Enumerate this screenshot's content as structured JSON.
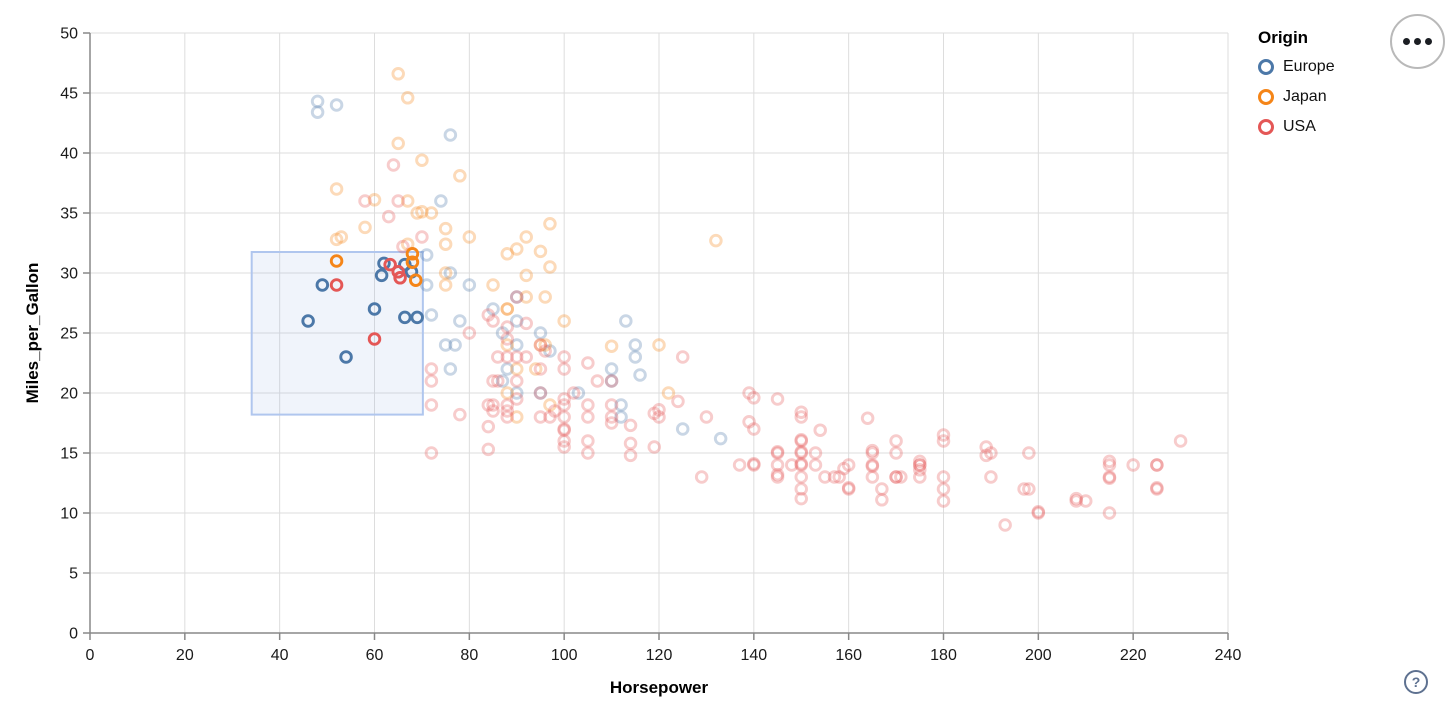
{
  "controls": {
    "help_label": "?",
    "options_icon": "ellipsis-icon"
  },
  "chart_data": {
    "type": "scatter",
    "title": "",
    "xlabel": "Horsepower",
    "ylabel": "Miles_per_Gallon",
    "xlim": [
      0,
      240
    ],
    "ylim": [
      0,
      50
    ],
    "x_ticks": [
      0,
      20,
      40,
      60,
      80,
      100,
      120,
      140,
      160,
      180,
      200,
      220,
      240
    ],
    "y_ticks": [
      0,
      5,
      10,
      15,
      20,
      25,
      30,
      35,
      40,
      45,
      50
    ],
    "grid": true,
    "legend": {
      "title": "Origin",
      "position": "top-right",
      "entries": [
        {
          "label": "Europe",
          "color": "#4c78a8"
        },
        {
          "label": "Japan",
          "color": "#f58518"
        },
        {
          "label": "USA",
          "color": "#e45756"
        }
      ]
    },
    "origin_colors": {
      "E": "#4c78a8",
      "J": "#f58518",
      "U": "#e45756"
    },
    "point_style": {
      "radius": 5.3,
      "stroke_width": 2.9,
      "unselected_opacity": 0.3
    },
    "brush_selection": {
      "hp_range": [
        34.1,
        70.2
      ],
      "mpg_range": [
        18.2,
        31.75
      ],
      "fill": "rgba(150,180,230,0.14)",
      "stroke": "#b0c6ee"
    },
    "points_format": [
      "horsepower",
      "miles_per_gallon",
      "origin(E|J|U)",
      "selected(1)"
    ],
    "points": [
      [
        46,
        26,
        "E",
        1
      ],
      [
        49,
        29,
        "E",
        1
      ],
      [
        54,
        23,
        "E",
        1
      ],
      [
        60,
        27,
        "E",
        1
      ],
      [
        61.5,
        29.8,
        "E",
        1
      ],
      [
        62,
        30.8,
        "E",
        1
      ],
      [
        66.4,
        30.7,
        "E",
        1
      ],
      [
        67.8,
        30.1,
        "E",
        1
      ],
      [
        66.4,
        26.3,
        "E",
        1
      ],
      [
        69,
        26.3,
        "E",
        1
      ],
      [
        52,
        31,
        "J",
        1
      ],
      [
        68,
        31.6,
        "J",
        1
      ],
      [
        68,
        30.9,
        "J",
        1
      ],
      [
        68.7,
        29.4,
        "J",
        1
      ],
      [
        52,
        29,
        "U",
        1
      ],
      [
        60,
        24.5,
        "U",
        1
      ],
      [
        63.3,
        30.7,
        "U",
        1
      ],
      [
        65,
        30.1,
        "U",
        1
      ],
      [
        65.4,
        29.6,
        "U",
        1
      ],
      [
        87,
        25,
        "E"
      ],
      [
        90,
        24,
        "E"
      ],
      [
        95,
        25,
        "E"
      ],
      [
        113,
        26,
        "E"
      ],
      [
        90,
        28,
        "E"
      ],
      [
        76,
        30,
        "E"
      ],
      [
        76,
        22,
        "E"
      ],
      [
        87,
        21,
        "E"
      ],
      [
        90,
        20,
        "E"
      ],
      [
        112,
        18,
        "E"
      ],
      [
        75,
        24,
        "E"
      ],
      [
        95,
        20,
        "E"
      ],
      [
        112,
        19,
        "E"
      ],
      [
        115,
        24,
        "E"
      ],
      [
        110,
        21,
        "E"
      ],
      [
        103,
        20,
        "E"
      ],
      [
        115,
        23,
        "E"
      ],
      [
        78,
        26,
        "E"
      ],
      [
        71,
        29,
        "E"
      ],
      [
        97,
        23.5,
        "E"
      ],
      [
        90,
        26,
        "E"
      ],
      [
        77,
        24,
        "E"
      ],
      [
        125,
        17,
        "E"
      ],
      [
        133,
        16.2,
        "E"
      ],
      [
        71,
        31.5,
        "E"
      ],
      [
        48,
        43.4,
        "E"
      ],
      [
        48,
        44.3,
        "E"
      ],
      [
        52,
        44,
        "E"
      ],
      [
        74,
        36,
        "E"
      ],
      [
        76,
        41.5,
        "E"
      ],
      [
        88,
        22,
        "E"
      ],
      [
        116,
        21.5,
        "E"
      ],
      [
        85,
        27,
        "E"
      ],
      [
        80,
        29,
        "E"
      ],
      [
        110,
        22,
        "E"
      ],
      [
        72,
        26.5,
        "E"
      ],
      [
        95,
        24,
        "J"
      ],
      [
        88,
        27,
        "J"
      ],
      [
        88,
        27,
        "J"
      ],
      [
        69,
        35,
        "J"
      ],
      [
        92,
        28,
        "J"
      ],
      [
        97,
        19,
        "J"
      ],
      [
        88,
        20,
        "J"
      ],
      [
        94,
        22,
        "J"
      ],
      [
        90,
        18,
        "J"
      ],
      [
        122,
        20,
        "J"
      ],
      [
        96,
        24,
        "J"
      ],
      [
        75,
        29,
        "J"
      ],
      [
        53,
        33,
        "J"
      ],
      [
        60,
        36.1,
        "J"
      ],
      [
        58,
        33.8,
        "J"
      ],
      [
        70,
        39.4,
        "J"
      ],
      [
        67,
        44.6,
        "J"
      ],
      [
        65,
        46.6,
        "J"
      ],
      [
        65,
        40.8,
        "J"
      ],
      [
        52,
        32.8,
        "J"
      ],
      [
        52,
        37,
        "J"
      ],
      [
        75,
        30,
        "J"
      ],
      [
        92,
        29.8,
        "J"
      ],
      [
        88,
        31.6,
        "J"
      ],
      [
        75,
        32.4,
        "J"
      ],
      [
        67,
        32.4,
        "J"
      ],
      [
        67,
        36,
        "J"
      ],
      [
        78,
        38.1,
        "J"
      ],
      [
        70,
        35.1,
        "J"
      ],
      [
        75,
        33.7,
        "J"
      ],
      [
        132,
        32.7,
        "J"
      ],
      [
        120,
        24,
        "J"
      ],
      [
        110,
        23.9,
        "J"
      ],
      [
        97,
        34.1,
        "J"
      ],
      [
        72,
        35,
        "J"
      ],
      [
        95,
        31.8,
        "J"
      ],
      [
        85,
        29,
        "J"
      ],
      [
        92,
        33,
        "J"
      ],
      [
        96,
        28,
        "J"
      ],
      [
        100,
        26,
        "J"
      ],
      [
        90,
        32,
        "J"
      ],
      [
        80,
        33,
        "J"
      ],
      [
        97,
        30.5,
        "J"
      ],
      [
        88,
        24,
        "J"
      ],
      [
        90,
        22,
        "J"
      ],
      [
        130,
        18,
        "U"
      ],
      [
        165,
        15,
        "U"
      ],
      [
        150,
        18,
        "U"
      ],
      [
        150,
        16,
        "U"
      ],
      [
        140,
        17,
        "U"
      ],
      [
        198,
        15,
        "U"
      ],
      [
        220,
        14,
        "U"
      ],
      [
        215,
        14,
        "U"
      ],
      [
        225,
        14,
        "U"
      ],
      [
        190,
        15,
        "U"
      ],
      [
        170,
        15,
        "U"
      ],
      [
        160,
        14,
        "U"
      ],
      [
        150,
        15,
        "U"
      ],
      [
        225,
        14,
        "U"
      ],
      [
        215,
        10,
        "U"
      ],
      [
        200,
        10,
        "U"
      ],
      [
        210,
        11,
        "U"
      ],
      [
        193,
        9,
        "U"
      ],
      [
        165,
        14,
        "U"
      ],
      [
        175,
        14,
        "U"
      ],
      [
        153,
        14,
        "U"
      ],
      [
        150,
        12,
        "U"
      ],
      [
        180,
        13,
        "U"
      ],
      [
        170,
        13,
        "U"
      ],
      [
        175,
        14,
        "U"
      ],
      [
        165,
        13,
        "U"
      ],
      [
        153,
        15,
        "U"
      ],
      [
        150,
        14,
        "U"
      ],
      [
        208,
        11,
        "U"
      ],
      [
        155,
        13,
        "U"
      ],
      [
        160,
        12,
        "U"
      ],
      [
        190,
        13,
        "U"
      ],
      [
        175,
        13,
        "U"
      ],
      [
        145,
        13,
        "U"
      ],
      [
        137,
        14,
        "U"
      ],
      [
        198,
        12,
        "U"
      ],
      [
        150,
        13,
        "U"
      ],
      [
        158,
        13,
        "U"
      ],
      [
        215,
        13,
        "U"
      ],
      [
        225,
        12,
        "U"
      ],
      [
        167,
        12,
        "U"
      ],
      [
        170,
        13,
        "U"
      ],
      [
        180,
        12,
        "U"
      ],
      [
        145,
        15,
        "U"
      ],
      [
        230,
        16,
        "U"
      ],
      [
        180,
        11,
        "U"
      ],
      [
        145,
        14,
        "U"
      ],
      [
        148,
        14,
        "U"
      ],
      [
        140,
        14,
        "U"
      ],
      [
        129,
        13,
        "U"
      ],
      [
        139,
        20,
        "U"
      ],
      [
        140,
        19.6,
        "U"
      ],
      [
        145,
        19.5,
        "U"
      ],
      [
        125,
        23,
        "U"
      ],
      [
        139,
        17.6,
        "U"
      ],
      [
        140,
        14.1,
        "U"
      ],
      [
        145,
        15.1,
        "U"
      ],
      [
        145,
        13.2,
        "U"
      ],
      [
        150,
        18.4,
        "U"
      ],
      [
        150,
        16.1,
        "U"
      ],
      [
        150,
        15.1,
        "U"
      ],
      [
        150,
        14.1,
        "U"
      ],
      [
        150,
        11.2,
        "U"
      ],
      [
        154,
        16.9,
        "U"
      ],
      [
        157,
        13,
        "U"
      ],
      [
        159,
        13.7,
        "U"
      ],
      [
        160,
        12.1,
        "U"
      ],
      [
        164,
        17.9,
        "U"
      ],
      [
        165,
        15.2,
        "U"
      ],
      [
        165,
        13.9,
        "U"
      ],
      [
        167,
        11.1,
        "U"
      ],
      [
        170,
        16,
        "U"
      ],
      [
        175,
        14.3,
        "U"
      ],
      [
        175,
        13.6,
        "U"
      ],
      [
        171,
        13,
        "U"
      ],
      [
        180,
        16.5,
        "U"
      ],
      [
        180,
        16,
        "U"
      ],
      [
        189,
        15.5,
        "U"
      ],
      [
        189,
        14.8,
        "U"
      ],
      [
        197,
        12,
        "U"
      ],
      [
        200,
        10.1,
        "U"
      ],
      [
        208,
        11.2,
        "U"
      ],
      [
        215,
        14.3,
        "U"
      ],
      [
        215,
        12.9,
        "U"
      ],
      [
        225,
        12.1,
        "U"
      ],
      [
        95,
        22,
        "U"
      ],
      [
        97,
        18,
        "U"
      ],
      [
        85,
        21,
        "U"
      ],
      [
        90,
        21,
        "U"
      ],
      [
        100,
        19,
        "U"
      ],
      [
        105,
        16,
        "U"
      ],
      [
        100,
        17,
        "U"
      ],
      [
        88,
        19,
        "U"
      ],
      [
        100,
        18,
        "U"
      ],
      [
        110,
        18,
        "U"
      ],
      [
        72,
        22,
        "U"
      ],
      [
        100,
        19.5,
        "U"
      ],
      [
        88,
        18,
        "U"
      ],
      [
        86,
        23,
        "U"
      ],
      [
        90,
        28,
        "U"
      ],
      [
        95,
        24,
        "U"
      ],
      [
        80,
        25,
        "U"
      ],
      [
        86,
        21,
        "U"
      ],
      [
        105,
        18,
        "U"
      ],
      [
        100,
        16,
        "U"
      ],
      [
        88,
        18.5,
        "U"
      ],
      [
        100,
        23,
        "U"
      ],
      [
        72,
        21,
        "U"
      ],
      [
        85,
        19,
        "U"
      ],
      [
        107,
        21,
        "U"
      ],
      [
        95,
        20,
        "U"
      ],
      [
        110,
        21,
        "U"
      ],
      [
        105,
        19,
        "U"
      ],
      [
        110,
        19,
        "U"
      ],
      [
        95,
        18,
        "U"
      ],
      [
        92,
        23,
        "U"
      ],
      [
        100,
        22,
        "U"
      ],
      [
        72,
        19,
        "U"
      ],
      [
        102,
        20,
        "U"
      ],
      [
        98,
        18.5,
        "U"
      ],
      [
        85,
        18.5,
        "U"
      ],
      [
        90,
        19.5,
        "U"
      ],
      [
        110,
        17.5,
        "U"
      ],
      [
        120,
        18,
        "U"
      ],
      [
        119,
        18.3,
        "U"
      ],
      [
        119,
        15.5,
        "U"
      ],
      [
        124,
        19.3,
        "U"
      ],
      [
        114,
        17.3,
        "U"
      ],
      [
        114,
        15.8,
        "U"
      ],
      [
        114,
        14.8,
        "U"
      ],
      [
        100,
        16.9,
        "U"
      ],
      [
        84,
        17.2,
        "U"
      ],
      [
        84,
        15.3,
        "U"
      ],
      [
        84,
        19,
        "U"
      ],
      [
        72,
        15,
        "U"
      ],
      [
        78,
        18.2,
        "U"
      ],
      [
        105,
        22.5,
        "U"
      ],
      [
        88,
        24.5,
        "U"
      ],
      [
        85,
        26,
        "U"
      ],
      [
        84,
        26.5,
        "U"
      ],
      [
        88,
        25.5,
        "U"
      ],
      [
        92,
        25.8,
        "U"
      ],
      [
        96,
        23.5,
        "U"
      ],
      [
        90,
        23,
        "U"
      ],
      [
        88,
        23,
        "U"
      ],
      [
        100,
        15.5,
        "U"
      ],
      [
        105,
        15,
        "U"
      ],
      [
        120,
        18.6,
        "U"
      ],
      [
        64,
        39,
        "U"
      ],
      [
        58,
        36,
        "U"
      ],
      [
        63,
        34.7,
        "U"
      ],
      [
        66,
        32.2,
        "U"
      ],
      [
        70,
        33,
        "U"
      ],
      [
        65,
        36,
        "U"
      ]
    ]
  }
}
